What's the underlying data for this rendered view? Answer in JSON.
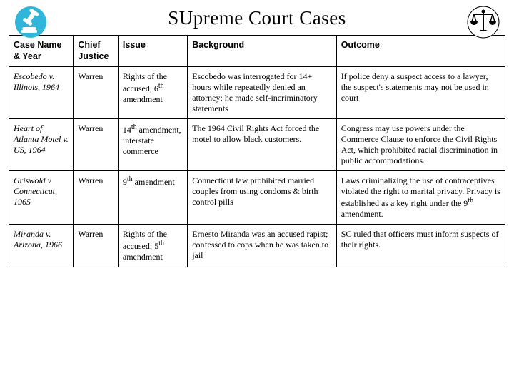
{
  "title": "SUpreme Court Cases",
  "icons": {
    "gavel_color": "#2fb6da",
    "scales_color": "#000000"
  },
  "table": {
    "columns": [
      "Case Name & Year",
      "Chief Justice",
      "Issue",
      "Background",
      "Outcome"
    ],
    "column_widths": [
      "13%",
      "9%",
      "14%",
      "30%",
      "34%"
    ],
    "header_font": "Arial",
    "body_font": "Georgia",
    "font_size": 12,
    "border_color": "#000000",
    "rows": [
      {
        "case": "Escobedo v. Illinois, 1964",
        "justice": "Warren",
        "issue_html": "Rights of the accused, 6<sup>th</sup> amendment",
        "background": "Escobedo was interrogated for 14+ hours while repeatedly denied an attorney; he made self-incriminatory statements",
        "outcome": "If police deny a suspect access to a lawyer, the suspect's statements may not be used in court"
      },
      {
        "case": "Heart of Atlanta Motel v. US, 1964",
        "justice": "Warren",
        "issue_html": "14<sup>th</sup> amendment, interstate commerce",
        "background": "The 1964 Civil Rights Act forced the motel to allow black customers.",
        "outcome": "Congress may use powers under the Commerce Clause to enforce the Civil Rights Act, which prohibited racial discrimination in public accommodations."
      },
      {
        "case": "Griswold v Connecticut, 1965",
        "justice": "Warren",
        "issue_html": "9<sup>th</sup> amendment",
        "background": "Connecticut law prohibited married couples from using condoms & birth control pills",
        "outcome_html": "Laws criminalizing the use of contraceptives violated the right to marital privacy. Privacy is established as a key right under the 9<sup>th</sup> amendment."
      },
      {
        "case": "Miranda v. Arizona, 1966",
        "justice": "Warren",
        "issue_html": "Rights of the accused; 5<sup>th</sup> amendment",
        "background": "Ernesto Miranda was an accused rapist; confessed to cops when he was taken to jail",
        "outcome": "SC ruled that officers must inform suspects of their rights."
      }
    ]
  }
}
